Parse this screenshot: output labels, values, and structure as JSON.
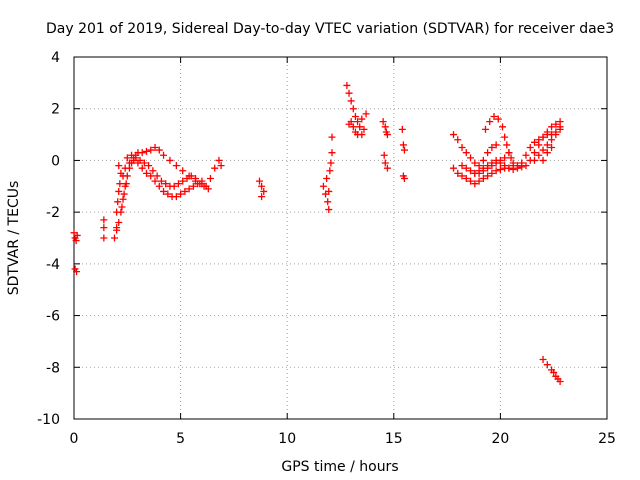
{
  "chart_data": {
    "type": "scatter",
    "title": "Day 201 of 2019, Sidereal Day-to-day VTEC variation (SDTVAR) for receiver dae3",
    "xlabel": "GPS time / hours",
    "ylabel": "SDTVAR / TECUs",
    "xlim": [
      0,
      25
    ],
    "ylim": [
      -10,
      4
    ],
    "xticks": [
      0,
      5,
      10,
      15,
      20,
      25
    ],
    "yticks": [
      -10,
      -8,
      -6,
      -4,
      -2,
      0,
      2,
      4
    ],
    "grid": true,
    "marker": "plus",
    "series_color": "#ff0000",
    "series": [
      {
        "name": "SDTVAR",
        "points": [
          [
            0.0,
            -2.8
          ],
          [
            0.05,
            -3.0
          ],
          [
            0.1,
            -3.1
          ],
          [
            0.15,
            -2.9
          ],
          [
            0.05,
            -4.2
          ],
          [
            0.12,
            -4.3
          ],
          [
            1.4,
            -2.3
          ],
          [
            1.4,
            -2.6
          ],
          [
            1.4,
            -3.0
          ],
          [
            1.9,
            -3.0
          ],
          [
            2.0,
            -2.7
          ],
          [
            2.1,
            -2.4
          ],
          [
            2.2,
            -2.0
          ],
          [
            2.3,
            -1.5
          ],
          [
            2.4,
            -1.0
          ],
          [
            2.5,
            -0.6
          ],
          [
            2.6,
            -0.3
          ],
          [
            2.7,
            -0.1
          ],
          [
            2.8,
            0.1
          ],
          [
            2.9,
            0.2
          ],
          [
            3.0,
            0.3
          ],
          [
            3.2,
            0.3
          ],
          [
            3.4,
            0.35
          ],
          [
            3.6,
            0.4
          ],
          [
            3.8,
            0.5
          ],
          [
            4.0,
            0.4
          ],
          [
            4.2,
            0.2
          ],
          [
            4.5,
            0.0
          ],
          [
            4.8,
            -0.2
          ],
          [
            5.1,
            -0.4
          ],
          [
            5.4,
            -0.6
          ],
          [
            5.7,
            -0.8
          ],
          [
            6.0,
            -0.9
          ],
          [
            6.2,
            -1.0
          ],
          [
            6.4,
            -0.7
          ],
          [
            6.6,
            -0.3
          ],
          [
            6.8,
            0.0
          ],
          [
            6.9,
            -0.2
          ],
          [
            2.2,
            -0.5
          ],
          [
            2.4,
            -0.3
          ],
          [
            2.6,
            -0.1
          ],
          [
            2.8,
            0.0
          ],
          [
            3.0,
            -0.1
          ],
          [
            3.2,
            -0.3
          ],
          [
            3.4,
            -0.5
          ],
          [
            3.6,
            -0.6
          ],
          [
            3.8,
            -0.8
          ],
          [
            4.0,
            -1.0
          ],
          [
            4.2,
            -1.2
          ],
          [
            4.4,
            -1.3
          ],
          [
            4.6,
            -1.4
          ],
          [
            4.8,
            -1.4
          ],
          [
            5.0,
            -1.3
          ],
          [
            5.2,
            -1.2
          ],
          [
            5.4,
            -1.1
          ],
          [
            5.6,
            -1.0
          ],
          [
            5.8,
            -0.9
          ],
          [
            6.0,
            -0.8
          ],
          [
            2.5,
            0.1
          ],
          [
            2.7,
            0.2
          ],
          [
            2.9,
            0.1
          ],
          [
            3.1,
            0.0
          ],
          [
            3.3,
            -0.1
          ],
          [
            3.5,
            -0.2
          ],
          [
            3.7,
            -0.4
          ],
          [
            3.9,
            -0.6
          ],
          [
            4.1,
            -0.8
          ],
          [
            4.3,
            -0.9
          ],
          [
            4.5,
            -1.0
          ],
          [
            4.7,
            -1.0
          ],
          [
            4.9,
            -0.9
          ],
          [
            5.1,
            -0.8
          ],
          [
            5.3,
            -0.7
          ],
          [
            5.5,
            -0.6
          ],
          [
            5.7,
            -0.7
          ],
          [
            5.9,
            -0.9
          ],
          [
            6.1,
            -1.0
          ],
          [
            6.3,
            -1.1
          ],
          [
            2.0,
            -2.0
          ],
          [
            2.05,
            -1.6
          ],
          [
            2.1,
            -1.2
          ],
          [
            2.15,
            -0.9
          ],
          [
            2.0,
            -2.6
          ],
          [
            2.25,
            -1.8
          ],
          [
            2.35,
            -1.3
          ],
          [
            2.45,
            -0.9
          ],
          [
            2.1,
            -0.2
          ],
          [
            2.3,
            -0.6
          ],
          [
            8.7,
            -0.8
          ],
          [
            8.8,
            -1.0
          ],
          [
            8.9,
            -1.2
          ],
          [
            8.8,
            -1.4
          ],
          [
            11.7,
            -1.0
          ],
          [
            11.8,
            -1.3
          ],
          [
            11.9,
            -1.6
          ],
          [
            11.85,
            -0.7
          ],
          [
            11.95,
            -1.9
          ],
          [
            12.0,
            -0.4
          ],
          [
            12.05,
            -0.1
          ],
          [
            12.1,
            0.3
          ],
          [
            12.1,
            0.9
          ],
          [
            11.95,
            -1.2
          ],
          [
            12.8,
            2.9
          ],
          [
            12.9,
            2.6
          ],
          [
            13.0,
            2.3
          ],
          [
            13.1,
            2.0
          ],
          [
            13.2,
            1.7
          ],
          [
            13.0,
            1.5
          ],
          [
            13.1,
            1.3
          ],
          [
            13.2,
            1.1
          ],
          [
            13.3,
            1.5
          ],
          [
            13.4,
            1.3
          ],
          [
            13.5,
            1.6
          ],
          [
            13.6,
            1.2
          ],
          [
            13.7,
            1.8
          ],
          [
            13.3,
            1.0
          ],
          [
            12.9,
            1.4
          ],
          [
            13.5,
            1.0
          ],
          [
            14.5,
            1.5
          ],
          [
            14.6,
            1.3
          ],
          [
            14.7,
            1.0
          ],
          [
            14.55,
            0.2
          ],
          [
            14.6,
            -0.1
          ],
          [
            14.7,
            -0.3
          ],
          [
            14.65,
            1.1
          ],
          [
            15.4,
            1.2
          ],
          [
            15.45,
            0.6
          ],
          [
            15.5,
            0.4
          ],
          [
            15.45,
            -0.6
          ],
          [
            15.5,
            -0.7
          ],
          [
            17.8,
            1.0
          ],
          [
            18.0,
            0.8
          ],
          [
            18.2,
            0.5
          ],
          [
            18.4,
            0.3
          ],
          [
            18.6,
            0.1
          ],
          [
            18.8,
            -0.1
          ],
          [
            19.0,
            -0.2
          ],
          [
            19.2,
            -0.3
          ],
          [
            19.4,
            -0.2
          ],
          [
            19.6,
            -0.1
          ],
          [
            19.8,
            0.0
          ],
          [
            20.0,
            -0.1
          ],
          [
            20.2,
            -0.2
          ],
          [
            20.4,
            -0.3
          ],
          [
            20.6,
            -0.2
          ],
          [
            17.8,
            -0.3
          ],
          [
            18.0,
            -0.5
          ],
          [
            18.2,
            -0.6
          ],
          [
            18.4,
            -0.7
          ],
          [
            18.6,
            -0.8
          ],
          [
            18.8,
            -0.9
          ],
          [
            19.0,
            -0.8
          ],
          [
            19.2,
            -0.7
          ],
          [
            19.4,
            -0.6
          ],
          [
            19.6,
            -0.5
          ],
          [
            19.8,
            -0.4
          ],
          [
            20.0,
            -0.35
          ],
          [
            20.2,
            -0.3
          ],
          [
            20.4,
            -0.3
          ],
          [
            20.6,
            -0.35
          ],
          [
            20.8,
            -0.3
          ],
          [
            21.0,
            -0.25
          ],
          [
            21.2,
            -0.2
          ],
          [
            21.4,
            0.0
          ],
          [
            21.6,
            0.3
          ],
          [
            21.8,
            0.6
          ],
          [
            22.0,
            0.9
          ],
          [
            22.2,
            1.0
          ],
          [
            22.4,
            1.0
          ],
          [
            22.6,
            1.1
          ],
          [
            22.8,
            1.3
          ],
          [
            18.2,
            -0.2
          ],
          [
            18.4,
            -0.3
          ],
          [
            18.6,
            -0.4
          ],
          [
            18.8,
            -0.5
          ],
          [
            19.0,
            -0.5
          ],
          [
            19.2,
            -0.4
          ],
          [
            19.4,
            -0.3
          ],
          [
            19.6,
            -0.2
          ],
          [
            19.8,
            -0.1
          ],
          [
            20.0,
            0.0
          ],
          [
            20.2,
            0.1
          ],
          [
            20.4,
            0.3
          ],
          [
            19.3,
            1.2
          ],
          [
            19.5,
            1.5
          ],
          [
            19.7,
            1.7
          ],
          [
            19.9,
            1.6
          ],
          [
            20.1,
            1.3
          ],
          [
            20.2,
            0.9
          ],
          [
            20.3,
            0.6
          ],
          [
            20.4,
            0.3
          ],
          [
            20.5,
            0.1
          ],
          [
            20.6,
            -0.1
          ],
          [
            20.8,
            -0.2
          ],
          [
            21.0,
            -0.1
          ],
          [
            21.2,
            0.2
          ],
          [
            21.4,
            0.5
          ],
          [
            21.6,
            0.7
          ],
          [
            21.8,
            0.8
          ],
          [
            22.0,
            0.9
          ],
          [
            22.2,
            1.1
          ],
          [
            22.4,
            1.3
          ],
          [
            22.6,
            1.4
          ],
          [
            22.8,
            1.5
          ],
          [
            21.6,
            0.0
          ],
          [
            21.8,
            0.2
          ],
          [
            22.0,
            0.4
          ],
          [
            22.2,
            0.6
          ],
          [
            22.4,
            0.8
          ],
          [
            22.6,
            1.0
          ],
          [
            22.8,
            1.2
          ],
          [
            22.0,
            0.0
          ],
          [
            22.2,
            0.3
          ],
          [
            22.4,
            0.5
          ],
          [
            18.8,
            -0.5
          ],
          [
            19.0,
            -0.4
          ],
          [
            19.2,
            0.0
          ],
          [
            19.4,
            0.3
          ],
          [
            19.6,
            0.5
          ],
          [
            19.8,
            0.6
          ],
          [
            22.0,
            -7.7
          ],
          [
            22.2,
            -7.9
          ],
          [
            22.4,
            -8.1
          ],
          [
            22.5,
            -8.2
          ],
          [
            22.6,
            -8.35
          ],
          [
            22.7,
            -8.45
          ],
          [
            22.8,
            -8.55
          ]
        ]
      }
    ]
  }
}
